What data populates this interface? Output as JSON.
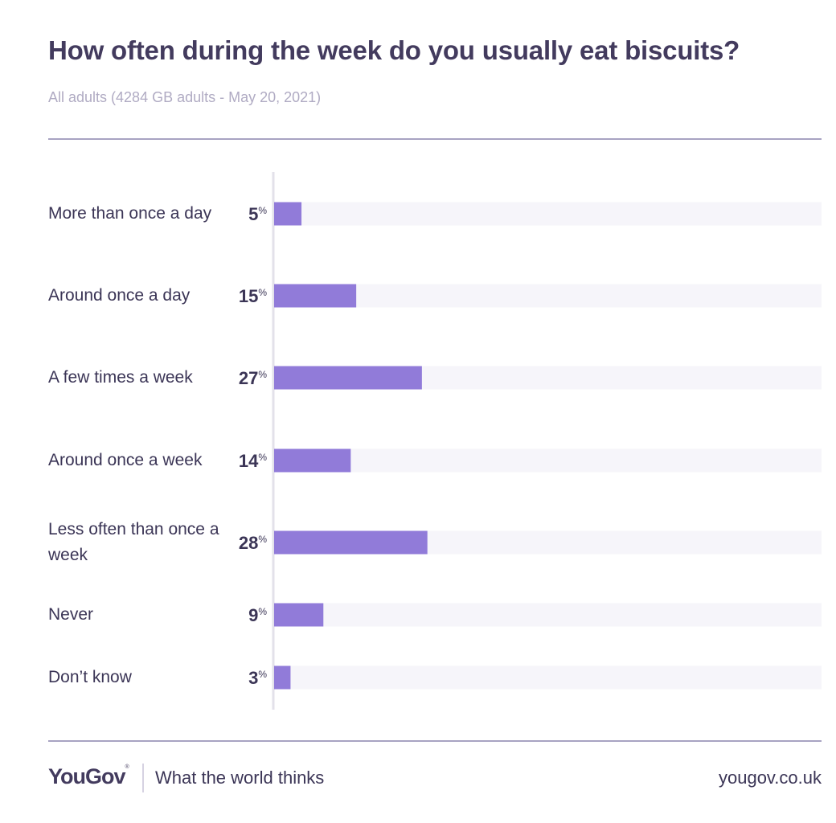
{
  "header": {
    "title": "How often during the week do you usually eat biscuits?",
    "subtitle": "All adults (4284 GB adults - May 20, 2021)"
  },
  "footer": {
    "logo": "YouGov",
    "logo_mark": "®",
    "tagline": "What the world thinks",
    "url": "yougov.co.uk"
  },
  "colors": {
    "bar": "#917bd9",
    "track": "#f6f5fa",
    "axis": "#e3e1ea",
    "text": "#3b3556"
  },
  "chart_data": {
    "type": "bar",
    "orientation": "horizontal",
    "categories": [
      "More than once a day",
      "Around once a day",
      "A few times a week",
      "Around once a week",
      "Less often than once a week",
      "Never",
      "Don’t know"
    ],
    "values": [
      5,
      15,
      27,
      14,
      28,
      9,
      3
    ],
    "value_suffix": "%",
    "xlim": [
      0,
      100
    ],
    "grid": false,
    "legend": "none"
  }
}
